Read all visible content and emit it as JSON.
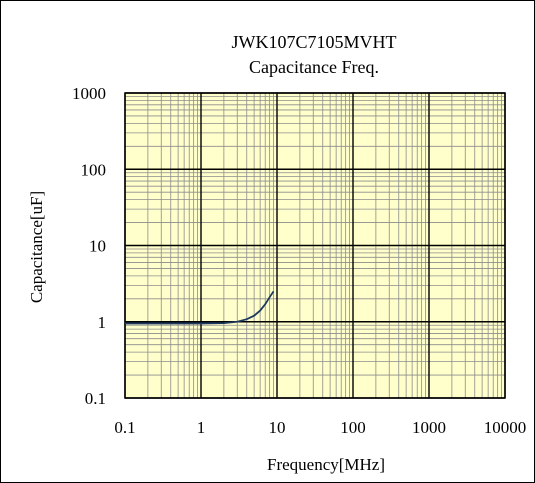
{
  "chart_data": {
    "type": "line",
    "title": "JWK107C7105MVHT",
    "subtitle": "Capacitance Freq.",
    "xlabel": "Frequency[MHz]",
    "ylabel": "Capacitance[uF]",
    "x_scale": "log",
    "y_scale": "log",
    "xlim": [
      0.1,
      10000
    ],
    "ylim": [
      0.1,
      1000
    ],
    "x_ticks": [
      "0.1",
      "1",
      "10",
      "100",
      "1000",
      "10000"
    ],
    "y_ticks": [
      "0.1",
      "1",
      "10",
      "100",
      "1000"
    ],
    "grid": true,
    "legend": "none",
    "colors": {
      "plot_background": "#FFFFCC",
      "series": "#1F3A5F",
      "major_grid": "#000000",
      "minor_grid": "#8C8C8C",
      "frame": "#000000"
    },
    "series": [
      {
        "x": [
          0.1,
          0.2,
          0.5,
          1,
          2,
          3,
          4,
          5,
          6,
          7,
          8,
          9
        ],
        "y": [
          0.95,
          0.95,
          0.95,
          0.95,
          0.96,
          1.0,
          1.08,
          1.2,
          1.4,
          1.7,
          2.1,
          2.5
        ]
      }
    ]
  }
}
